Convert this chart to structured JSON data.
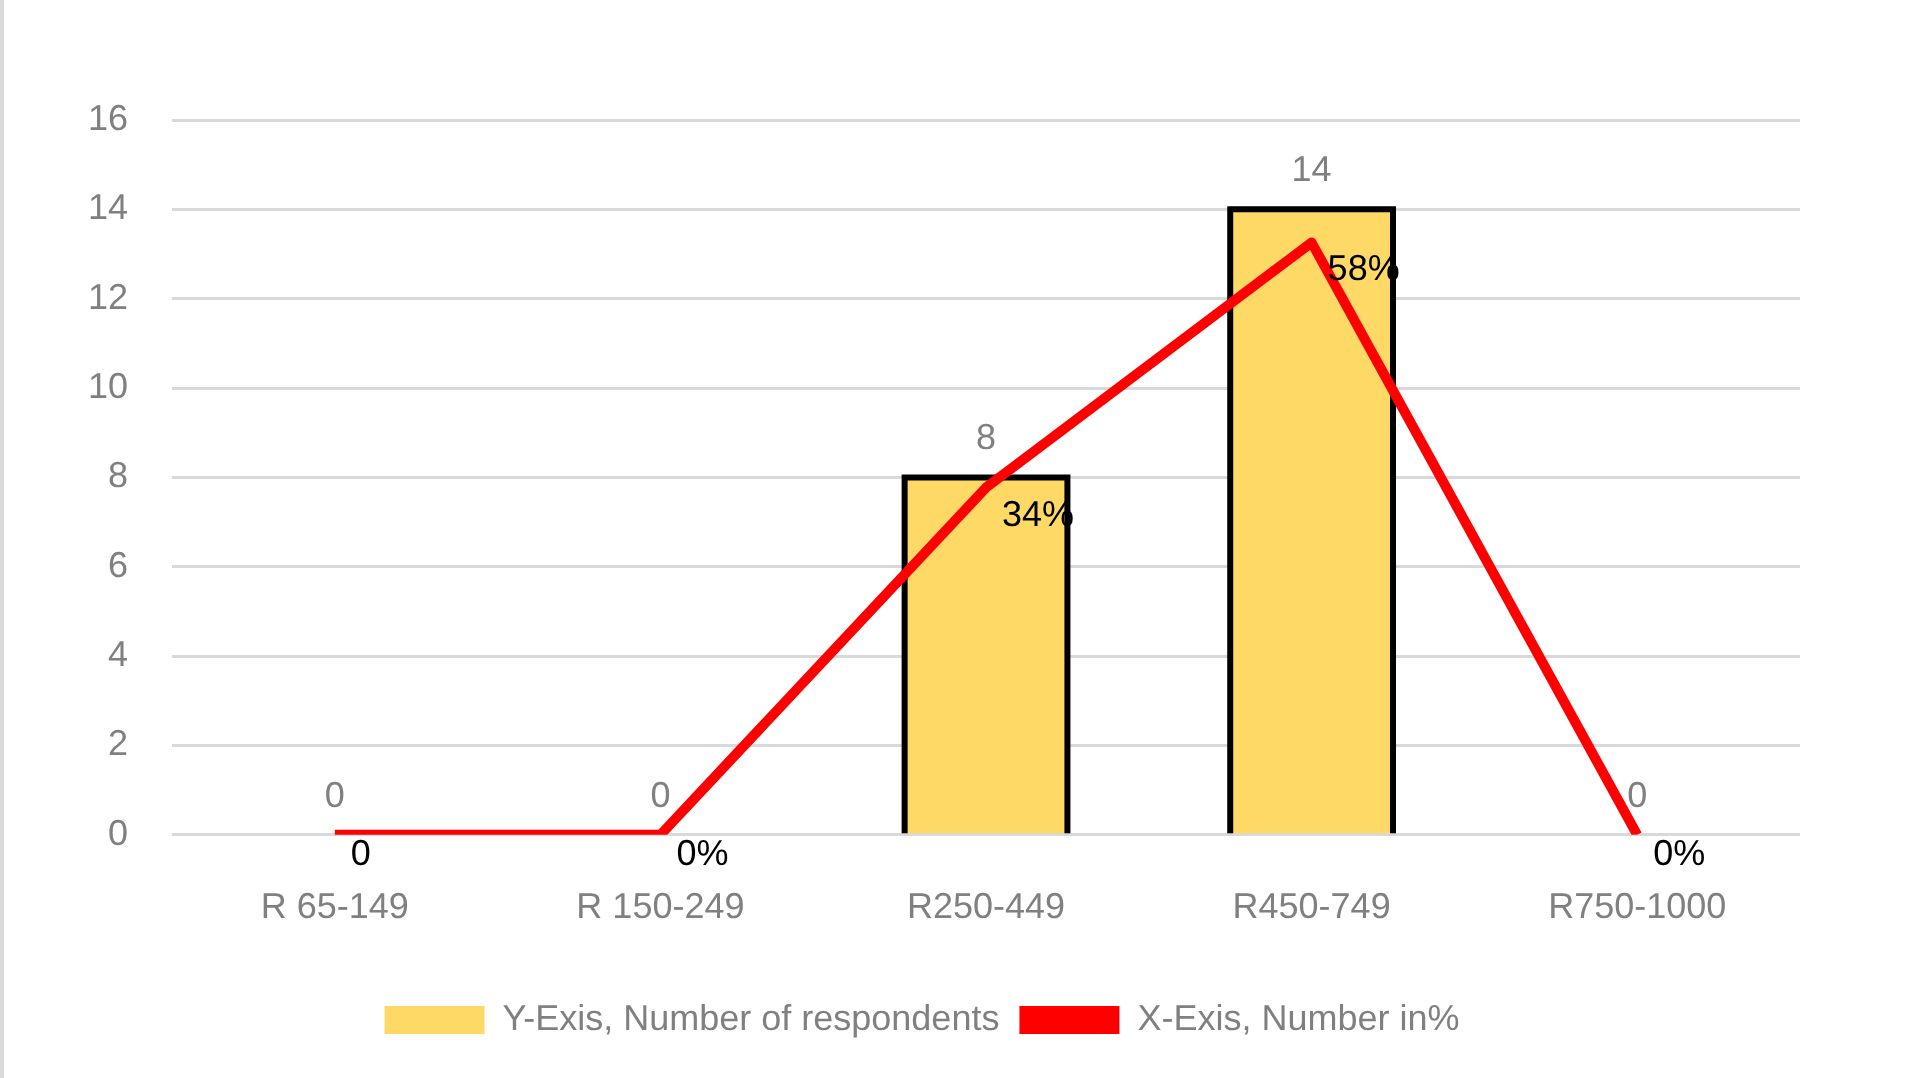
{
  "chart_data": {
    "type": "bar",
    "categories": [
      "R 65-149",
      "R 150-249",
      "R250-449",
      "R450-749",
      "R750-1000"
    ],
    "series": [
      {
        "name": "Y-Exis, Number of respondents",
        "color": "#ffd966",
        "values": [
          0,
          0,
          8,
          14,
          0
        ],
        "value_labels": [
          "0",
          "0",
          "8",
          "14",
          "0"
        ]
      },
      {
        "name": "X-Exis, Number in%",
        "type": "line",
        "color": "#ff0000",
        "axis": "y2",
        "values": [
          0,
          0,
          34,
          58,
          0
        ],
        "value_labels": [
          "0",
          "0%",
          "34%",
          "58%",
          "0%"
        ]
      }
    ],
    "ylim": [
      0,
      16
    ],
    "yticks": [
      0,
      2,
      4,
      6,
      8,
      10,
      12,
      14,
      16
    ],
    "y2lim": [
      0,
      70
    ],
    "grid": "y",
    "legend": "bottom",
    "marker": "none"
  }
}
